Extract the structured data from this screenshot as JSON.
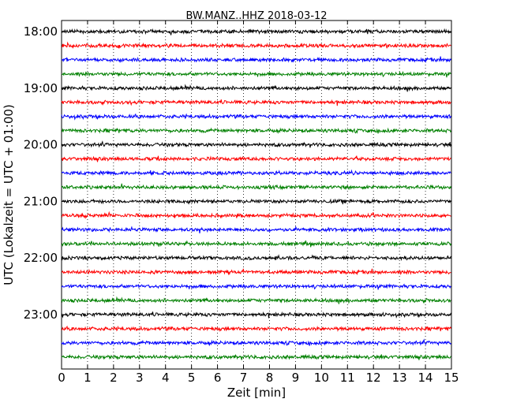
{
  "chart_data": {
    "type": "line",
    "title": "BW.MANZ..HHZ 2018-03-12",
    "xlabel": "Zeit  [min]",
    "ylabel": "UTC (Lokalzeit = UTC + 01:00)",
    "xlim": [
      0,
      15
    ],
    "x_ticks": [
      "0",
      "1",
      "2",
      "3",
      "4",
      "5",
      "6",
      "7",
      "8",
      "9",
      "10",
      "11",
      "12",
      "13",
      "14",
      "15"
    ],
    "y_ticks": [
      {
        "label": "18:00",
        "trace_index": 0
      },
      {
        "label": "19:00",
        "trace_index": 4
      },
      {
        "label": "20:00",
        "trace_index": 8
      },
      {
        "label": "21:00",
        "trace_index": 12
      },
      {
        "label": "22:00",
        "trace_index": 16
      },
      {
        "label": "23:00",
        "trace_index": 20
      }
    ],
    "grid": {
      "vertical_dotted": true,
      "horizontal": false
    },
    "trace_colors": [
      "#000000",
      "#ff0000",
      "#0000ff",
      "#008000"
    ],
    "trace_count": 24,
    "trace_duration_min": 15,
    "traces_start": "18:00",
    "traces_end": "24:00"
  }
}
